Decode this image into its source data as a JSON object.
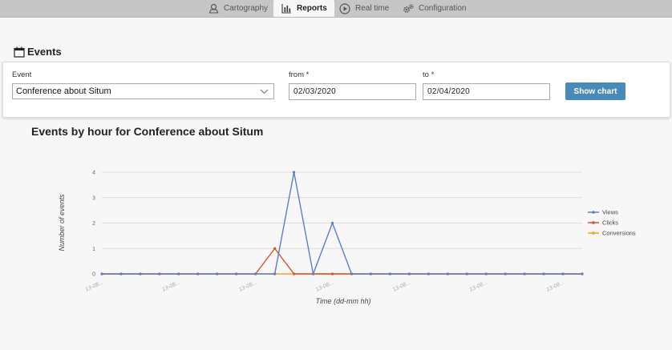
{
  "nav": {
    "tabs": [
      {
        "label": "Cartography",
        "icon": "map-pin-icon",
        "active": false
      },
      {
        "label": "Reports",
        "icon": "bar-chart-icon",
        "active": true
      },
      {
        "label": "Real time",
        "icon": "play-icon",
        "active": false
      },
      {
        "label": "Configuration",
        "icon": "gears-icon",
        "active": false
      }
    ]
  },
  "section": {
    "title": "Events",
    "icon": "calendar-icon"
  },
  "filters": {
    "event_label": "Event",
    "event_value": "Conference about Situm",
    "from_label": "from *",
    "from_value": "02/03/2020",
    "to_label": "to *",
    "to_value": "02/04/2020",
    "submit_label": "Show chart"
  },
  "chart_data": {
    "type": "line",
    "title": "Events by hour for Conference about Situm",
    "xlabel": "Time (dd-mm hh)",
    "ylabel": "Number of events",
    "ylim": [
      0,
      4
    ],
    "yticks": [
      0,
      1,
      2,
      3,
      4
    ],
    "x_tick_labels": [
      "13-08...",
      "13-08...",
      "13-08...",
      "13-08...",
      "13-08...",
      "13-08...",
      "13-08..."
    ],
    "legend_position": "right",
    "series": [
      {
        "name": "Views",
        "color": "#5b7fc7",
        "values": [
          0,
          0,
          0,
          0,
          0,
          0,
          0,
          0,
          0,
          0,
          4,
          0,
          2,
          0,
          0,
          0,
          0,
          0,
          0,
          0,
          0,
          0,
          0,
          0,
          0,
          0
        ]
      },
      {
        "name": "Clicks",
        "color": "#d9532c",
        "values": [
          0,
          0,
          0,
          0,
          0,
          0,
          0,
          0,
          0,
          1,
          0,
          0,
          0,
          0,
          0,
          0,
          0,
          0,
          0,
          0,
          0,
          0,
          0,
          0,
          0,
          0
        ]
      },
      {
        "name": "Conversions",
        "color": "#f0a020",
        "values": [
          0,
          0,
          0,
          0,
          0,
          0,
          0,
          0,
          0,
          0,
          0,
          0,
          0,
          0,
          0,
          0,
          0,
          0,
          0,
          0,
          0,
          0,
          0,
          0,
          0,
          0
        ]
      }
    ]
  }
}
